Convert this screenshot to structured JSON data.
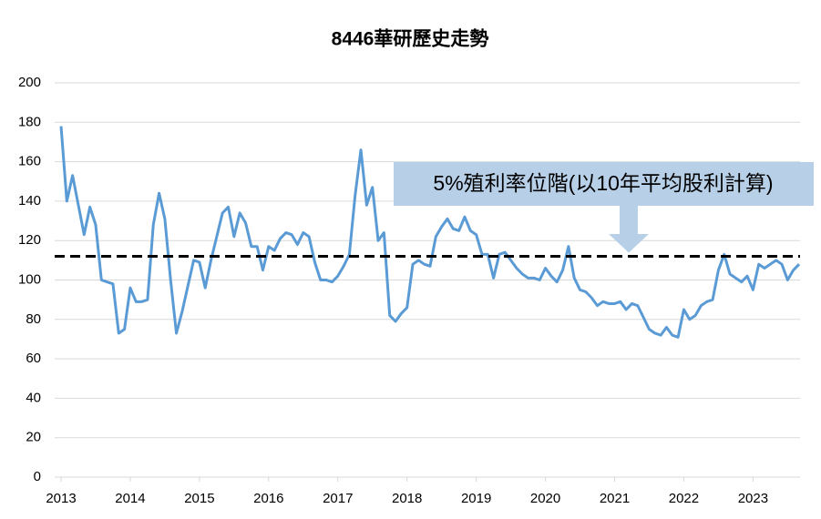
{
  "chart_data": {
    "type": "line",
    "title": "8446華研歷史走勢",
    "annotation": "5%殖利率位階(以10年平均股利計算)",
    "threshold": 112,
    "series": [
      {
        "color": "#5b9bd5",
        "values": [
          178,
          140,
          153,
          138,
          123,
          137,
          128,
          100,
          99,
          98,
          73,
          75,
          96,
          89,
          89,
          90,
          128,
          144,
          131,
          100,
          73,
          84,
          97,
          110,
          109,
          96,
          110,
          122,
          134,
          137,
          122,
          134,
          129,
          117,
          117,
          105,
          117,
          115,
          121,
          124,
          123,
          118,
          124,
          122,
          109,
          100,
          100,
          99,
          102,
          107,
          113,
          143,
          166,
          138,
          147,
          120,
          124,
          82,
          79,
          83,
          86,
          108,
          110,
          108,
          107,
          122,
          127,
          131,
          126,
          125,
          132,
          125,
          123,
          113,
          113,
          101,
          113,
          114,
          110,
          106,
          103,
          101,
          101,
          100,
          106,
          102,
          99,
          105,
          117,
          101,
          95,
          94,
          91,
          87,
          89,
          88,
          88,
          89,
          85,
          88,
          87,
          81,
          75,
          73,
          72,
          76,
          72,
          71,
          85,
          80,
          82,
          87,
          89,
          90,
          105,
          113,
          103,
          101,
          99,
          102,
          95,
          108,
          106,
          108,
          110,
          108,
          100,
          105,
          108
        ]
      }
    ],
    "xlim": [
      0,
      128
    ],
    "xticks": [
      {
        "value": 0,
        "label": "2013"
      },
      {
        "value": 12,
        "label": "2014"
      },
      {
        "value": 24,
        "label": "2015"
      },
      {
        "value": 36,
        "label": "2016"
      },
      {
        "value": 48,
        "label": "2017"
      },
      {
        "value": 60,
        "label": "2018"
      },
      {
        "value": 72,
        "label": "2019"
      },
      {
        "value": 84,
        "label": "2020"
      },
      {
        "value": 96,
        "label": "2021"
      },
      {
        "value": 108,
        "label": "2022"
      },
      {
        "value": 120,
        "label": "2023"
      }
    ],
    "ylim": [
      0,
      200
    ],
    "yticks": [
      0,
      20,
      40,
      60,
      80,
      100,
      120,
      140,
      160,
      180,
      200
    ],
    "grid": true
  }
}
